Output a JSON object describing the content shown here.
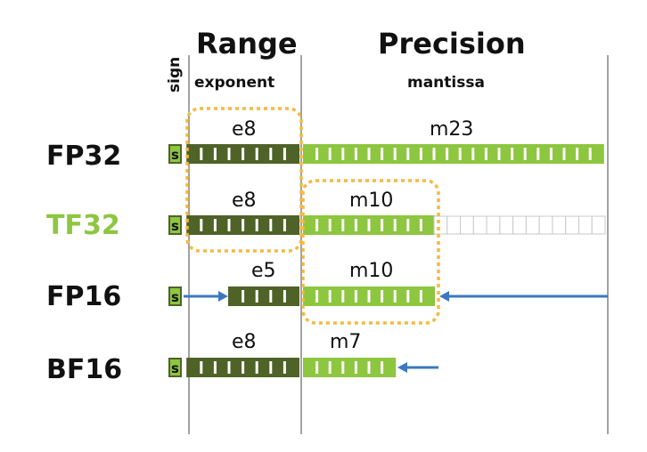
{
  "headers": {
    "sign": "sign",
    "range": "Range",
    "exponent": "exponent",
    "precision": "Precision",
    "mantissa": "mantissa"
  },
  "colors": {
    "dark_green": "#4f6228",
    "light_green": "#8dc63f",
    "grey_cell": "#c8c8c8",
    "highlight_dash": "#f5b942",
    "arrow_blue": "#3a78c0",
    "tf32_label": "#8dc63f"
  },
  "rows": [
    {
      "name": "FP32",
      "sign": "s",
      "exp_label": "e8",
      "exp_bits": 8,
      "man_label": "m23",
      "man_bits": 23,
      "unused_bits": 0
    },
    {
      "name": "TF32",
      "sign": "s",
      "exp_label": "e8",
      "exp_bits": 8,
      "man_label": "m10",
      "man_bits": 10,
      "unused_bits": 13
    },
    {
      "name": "FP16",
      "sign": "s",
      "exp_label": "e5",
      "exp_bits": 5,
      "man_label": "m10",
      "man_bits": 10,
      "unused_bits": 0
    },
    {
      "name": "BF16",
      "sign": "s",
      "exp_label": "e8",
      "exp_bits": 8,
      "man_label": "m7",
      "man_bits": 7,
      "unused_bits": 0
    }
  ]
}
